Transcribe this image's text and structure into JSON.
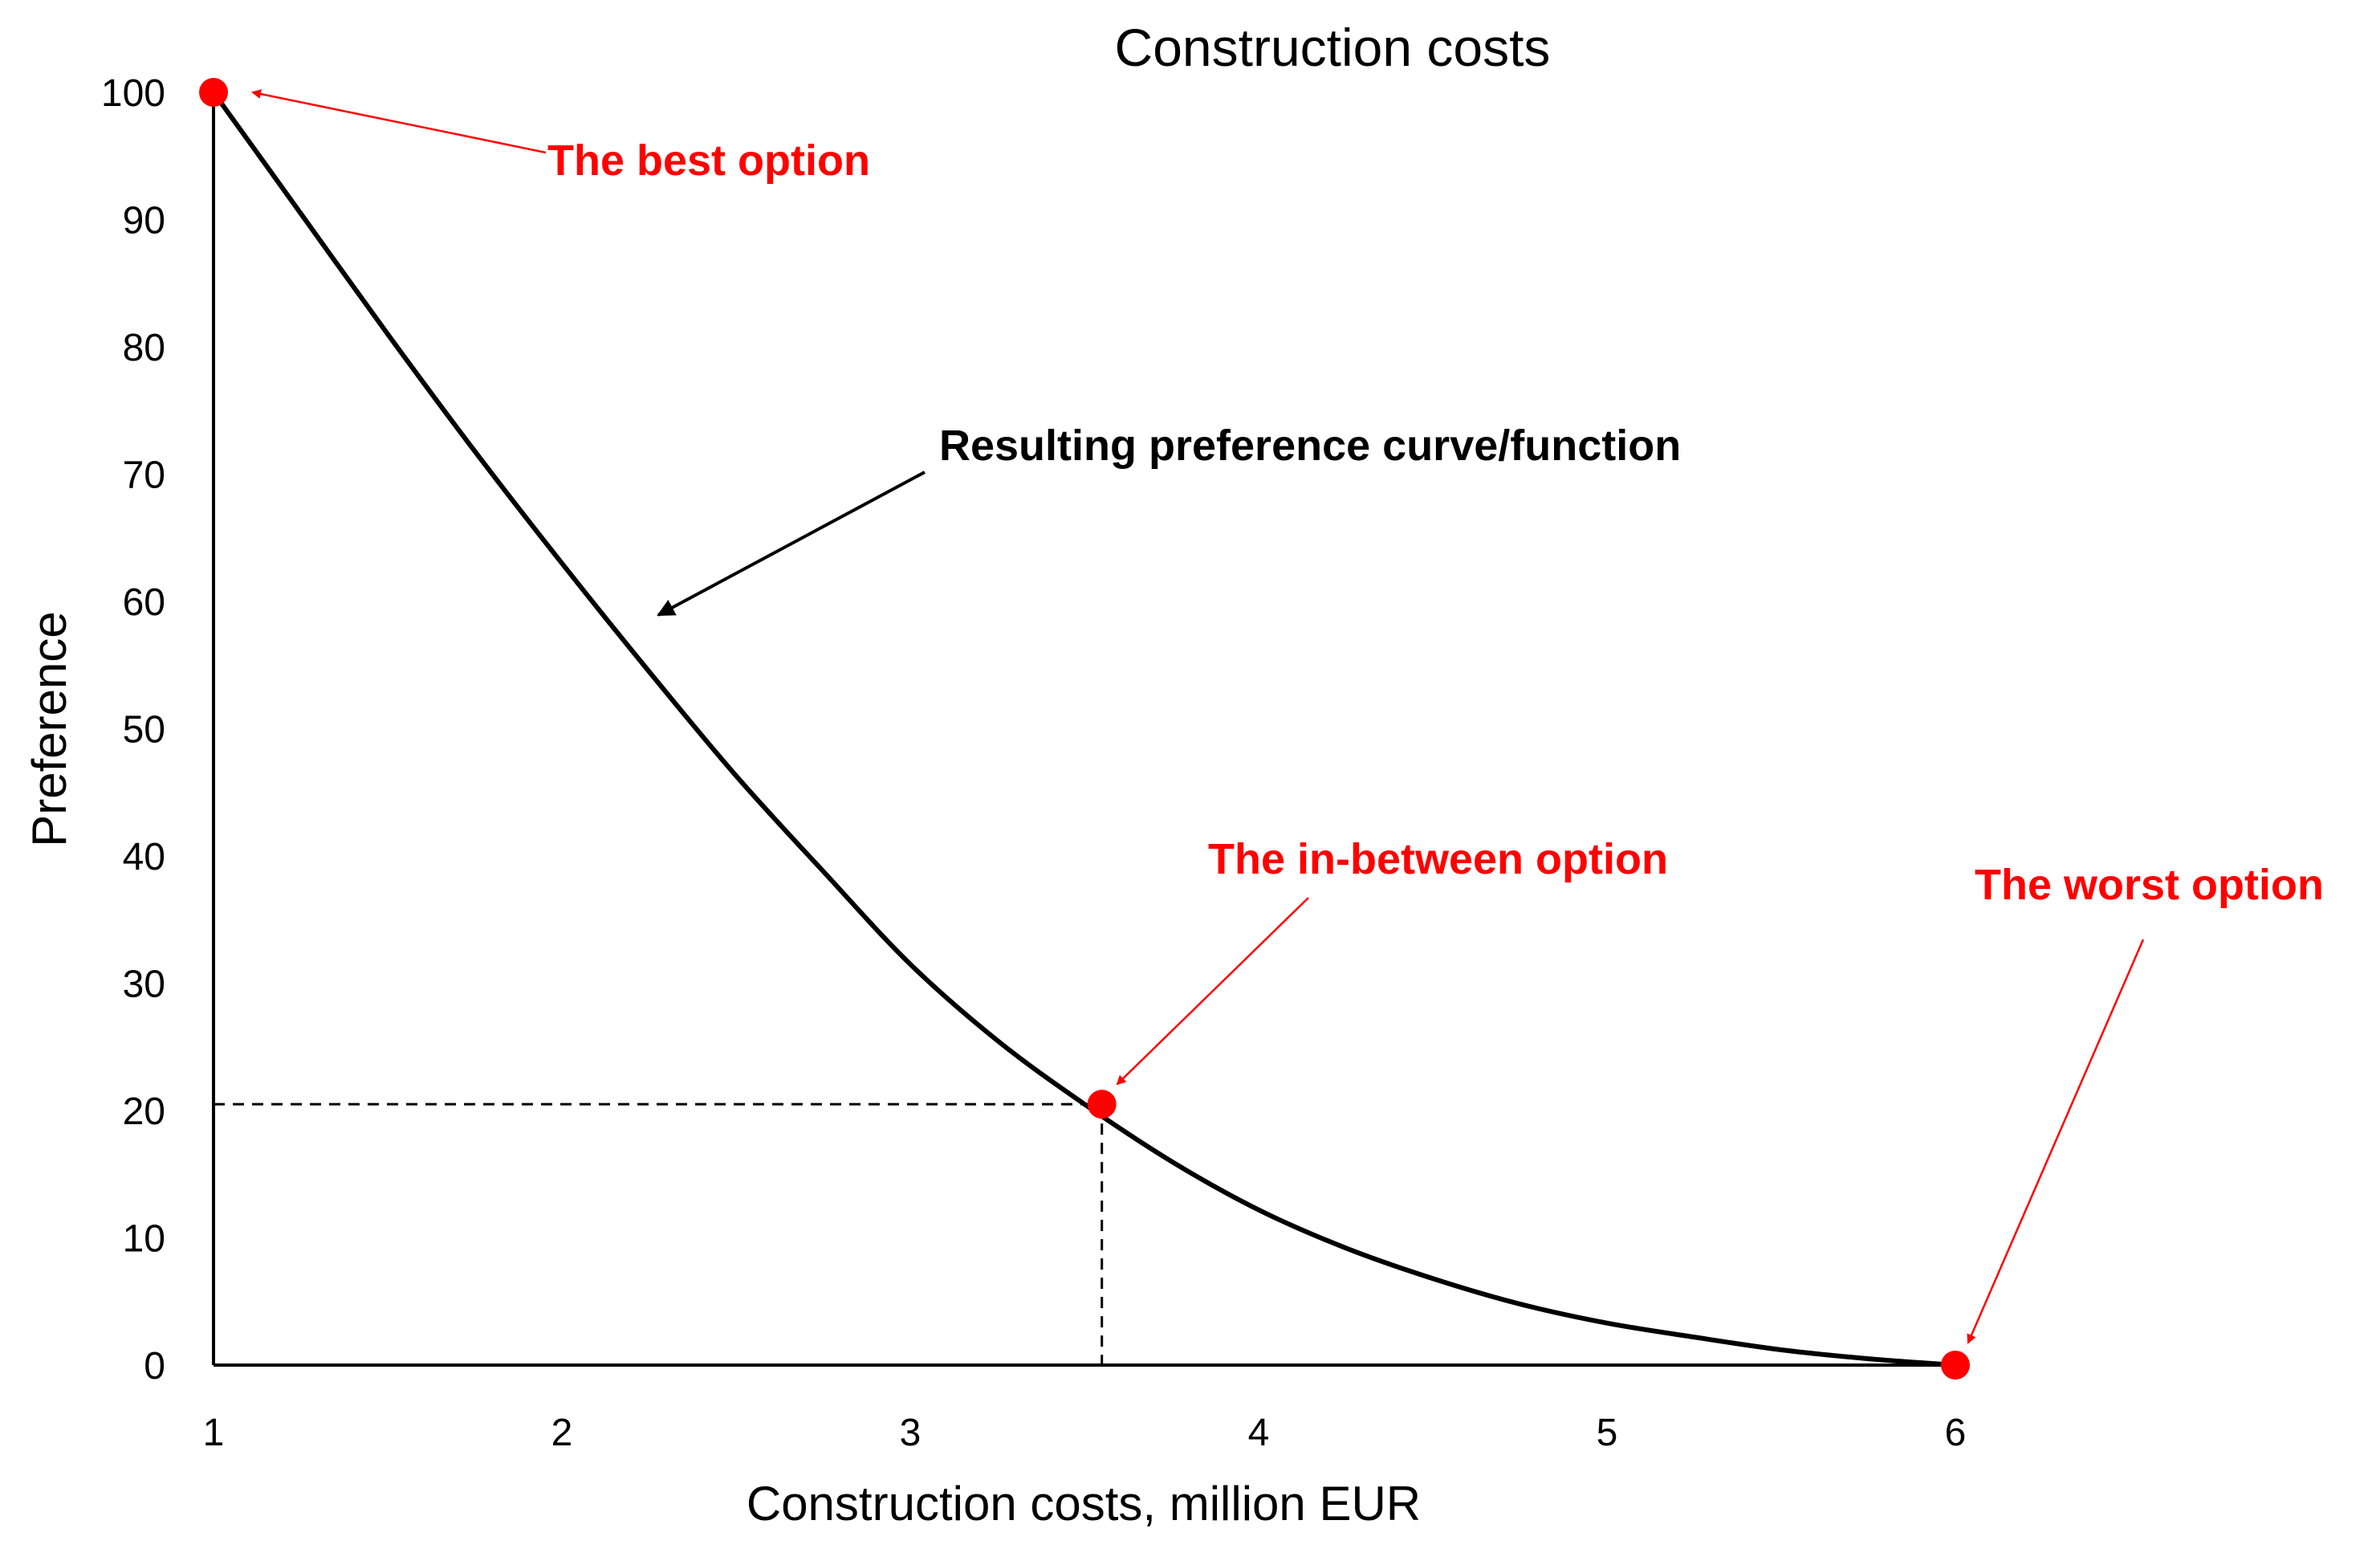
{
  "chart_data": {
    "type": "line",
    "title": "Construction costs",
    "xlabel": "Construction costs, million EUR",
    "ylabel": "Preference",
    "xlim": [
      1,
      6
    ],
    "ylim": [
      0,
      100
    ],
    "x_ticks": [
      1,
      2,
      3,
      4,
      5,
      6
    ],
    "y_ticks": [
      0,
      10,
      20,
      30,
      40,
      50,
      60,
      70,
      80,
      90,
      100
    ],
    "grid": false,
    "series": [
      {
        "x": [
          1.0,
          1.25,
          1.5,
          1.75,
          2.0,
          2.25,
          2.5,
          2.75,
          3.0,
          3.25,
          3.5,
          3.75,
          4.0,
          4.25,
          4.5,
          4.75,
          5.0,
          5.25,
          5.5,
          5.75,
          6.0
        ],
        "values": [
          100,
          90.5,
          81,
          71.8,
          63,
          54.5,
          46.3,
          38.8,
          31.5,
          25.5,
          20.5,
          16,
          12.2,
          9.2,
          6.8,
          4.8,
          3.3,
          2.2,
          1.2,
          0.5,
          0
        ]
      }
    ],
    "points": [
      {
        "x": 1,
        "y": 100,
        "label": "The best option",
        "color": "#ff0000"
      },
      {
        "x": 3.55,
        "y": 20.5,
        "label": "The in-between option",
        "color": "#ff0000"
      },
      {
        "x": 6,
        "y": 0,
        "label": "The worst option",
        "color": "#ff0000"
      }
    ],
    "reference_point": {
      "x": 3.55,
      "y": 20.5
    },
    "curve_annotation": "Resulting preference curve/function",
    "colors": {
      "curve": "#000000",
      "points": "#ff0000",
      "annotation_red": "#ff0000"
    }
  }
}
